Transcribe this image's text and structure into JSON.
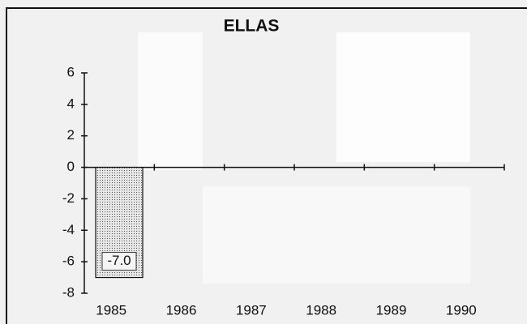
{
  "chart_data": {
    "type": "bar",
    "title": "ELLAS",
    "categories": [
      "1985",
      "1986",
      "1987",
      "1988",
      "1989",
      "1990"
    ],
    "values": [
      -7.0,
      null,
      null,
      null,
      null,
      null
    ],
    "value_labels": [
      "-7.0",
      null,
      null,
      null,
      null,
      null
    ],
    "color": "#c8c8c8",
    "ylim": [
      -8,
      6
    ],
    "yticks": [
      -8,
      -6,
      -4,
      -2,
      0,
      2,
      4,
      6
    ],
    "grid": false
  }
}
